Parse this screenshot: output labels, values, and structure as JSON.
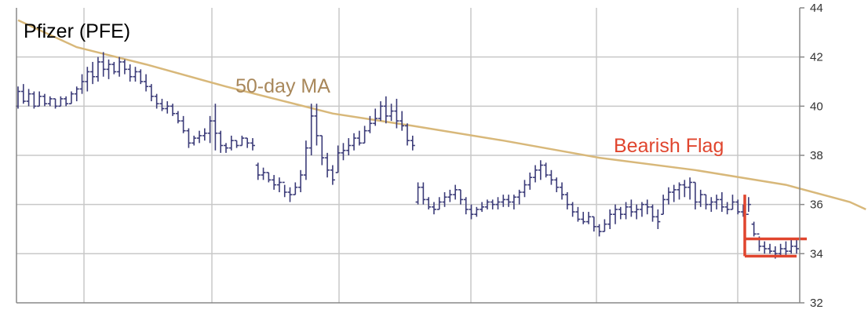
{
  "chart_data": {
    "type": "ohlc",
    "title": "Pfizer (PFE)",
    "xlabel": "",
    "ylabel": "",
    "ylim": [
      32,
      44
    ],
    "y_ticks": [
      32,
      34,
      36,
      38,
      40,
      42,
      44
    ],
    "grid": true,
    "annotations": {
      "ma_label": "50-day MA",
      "pattern_label": "Bearish Flag"
    },
    "colors": {
      "bars": "#3b3b78",
      "moving_average": "#d8b87a",
      "ma_label": "#a8875a",
      "pattern": "#e0452e",
      "grid": "#c8c8c8",
      "axis": "#888888"
    },
    "moving_average": {
      "name": "50-day MA",
      "points": [
        [
          1,
          43.5
        ],
        [
          12,
          42.4
        ],
        [
          25,
          41.7
        ],
        [
          40,
          40.8
        ],
        [
          60,
          39.7
        ],
        [
          75,
          39.2
        ],
        [
          92,
          38.6
        ],
        [
          110,
          37.9
        ],
        [
          128,
          37.4
        ],
        [
          145,
          36.8
        ],
        [
          157,
          36.1
        ],
        [
          160,
          35.8
        ]
      ]
    },
    "ohlc": [
      [
        39.9,
        40.8,
        40.0,
        40.6
      ],
      [
        40.1,
        40.9,
        40.6,
        40.2
      ],
      [
        40.0,
        40.7,
        40.2,
        40.5
      ],
      [
        39.9,
        40.6,
        40.5,
        40.0
      ],
      [
        40.0,
        40.6,
        40.0,
        40.4
      ],
      [
        40.0,
        40.5,
        40.4,
        40.1
      ],
      [
        40.0,
        40.4,
        40.1,
        40.3
      ],
      [
        39.9,
        40.3,
        40.3,
        40.0
      ],
      [
        40.0,
        40.4,
        40.0,
        40.3
      ],
      [
        40.0,
        40.4,
        40.3,
        40.1
      ],
      [
        40.1,
        40.6,
        40.1,
        40.5
      ],
      [
        40.2,
        40.8,
        40.5,
        40.7
      ],
      [
        40.5,
        41.3,
        40.7,
        41.0
      ],
      [
        40.6,
        41.6,
        41.0,
        41.4
      ],
      [
        40.9,
        41.8,
        41.4,
        41.2
      ],
      [
        41.0,
        42.0,
        41.2,
        41.8
      ],
      [
        41.2,
        42.2,
        41.8,
        41.5
      ],
      [
        41.1,
        41.9,
        41.5,
        41.7
      ],
      [
        41.3,
        41.8,
        41.7,
        41.4
      ],
      [
        41.2,
        42.0,
        41.4,
        41.8
      ],
      [
        41.3,
        41.9,
        41.8,
        41.5
      ],
      [
        41.0,
        41.7,
        41.5,
        41.2
      ],
      [
        41.0,
        41.6,
        41.2,
        41.4
      ],
      [
        40.9,
        41.5,
        41.4,
        41.0
      ],
      [
        40.6,
        41.3,
        41.0,
        40.8
      ],
      [
        40.2,
        40.9,
        40.8,
        40.4
      ],
      [
        39.9,
        40.5,
        40.4,
        40.1
      ],
      [
        39.8,
        40.3,
        40.1,
        39.9
      ],
      [
        39.7,
        40.2,
        39.9,
        40.0
      ],
      [
        39.6,
        40.1,
        40.0,
        39.7
      ],
      [
        39.3,
        39.8,
        39.7,
        39.4
      ],
      [
        38.9,
        39.6,
        39.4,
        39.0
      ],
      [
        38.3,
        39.1,
        39.0,
        38.5
      ],
      [
        38.4,
        38.8,
        38.5,
        38.7
      ],
      [
        38.5,
        39.0,
        38.7,
        38.8
      ],
      [
        38.6,
        39.1,
        38.8,
        38.9
      ],
      [
        38.5,
        39.6,
        38.9,
        39.4
      ],
      [
        38.2,
        40.1,
        39.4,
        38.9
      ],
      [
        38.1,
        39.0,
        38.9,
        38.4
      ],
      [
        38.1,
        38.5,
        38.4,
        38.3
      ],
      [
        38.2,
        38.8,
        38.3,
        38.6
      ],
      [
        38.3,
        38.6,
        38.6,
        38.4
      ],
      [
        38.4,
        38.8,
        38.4,
        38.7
      ],
      [
        38.3,
        38.7,
        38.7,
        38.5
      ],
      [
        38.2,
        38.7,
        38.5,
        38.4
      ],
      [
        37.0,
        37.7,
        37.6,
        37.2
      ],
      [
        37.0,
        37.5,
        37.2,
        37.3
      ],
      [
        36.9,
        37.3,
        37.3,
        37.0
      ],
      [
        36.6,
        37.2,
        37.0,
        36.8
      ],
      [
        36.5,
        37.1,
        36.8,
        36.9
      ],
      [
        36.3,
        36.8,
        36.9,
        36.5
      ],
      [
        36.1,
        36.7,
        36.5,
        36.4
      ],
      [
        36.4,
        36.9,
        36.4,
        36.7
      ],
      [
        36.5,
        37.4,
        36.7,
        37.2
      ],
      [
        37.0,
        38.6,
        37.2,
        38.3
      ],
      [
        38.0,
        40.1,
        38.3,
        39.6
      ],
      [
        38.4,
        40.1,
        39.6,
        38.8
      ],
      [
        37.6,
        38.8,
        38.8,
        37.9
      ],
      [
        37.1,
        38.1,
        37.9,
        37.4
      ],
      [
        36.8,
        37.6,
        37.4,
        37.0
      ],
      [
        37.3,
        38.4,
        37.3,
        38.1
      ],
      [
        37.8,
        38.5,
        38.1,
        38.2
      ],
      [
        38.0,
        38.7,
        38.2,
        38.4
      ],
      [
        38.2,
        38.9,
        38.4,
        38.7
      ],
      [
        38.4,
        39.0,
        38.7,
        38.5
      ],
      [
        38.5,
        39.2,
        38.5,
        39.0
      ],
      [
        38.9,
        39.6,
        39.0,
        39.3
      ],
      [
        39.2,
        39.9,
        39.3,
        39.5
      ],
      [
        39.4,
        40.2,
        39.5,
        40.0
      ],
      [
        39.3,
        40.4,
        40.0,
        39.6
      ],
      [
        39.4,
        40.1,
        39.6,
        39.8
      ],
      [
        39.1,
        40.3,
        39.8,
        39.4
      ],
      [
        39.0,
        39.8,
        39.4,
        39.2
      ],
      [
        38.4,
        39.3,
        39.2,
        38.6
      ],
      [
        38.2,
        38.8,
        38.6,
        38.4
      ],
      [
        36.0,
        36.9,
        36.1,
        36.7
      ],
      [
        36.0,
        36.9,
        36.7,
        36.2
      ],
      [
        35.8,
        36.3,
        36.2,
        35.9
      ],
      [
        35.6,
        36.1,
        35.9,
        35.8
      ],
      [
        35.8,
        36.3,
        35.8,
        36.1
      ],
      [
        35.9,
        36.5,
        36.1,
        36.3
      ],
      [
        36.1,
        36.6,
        36.3,
        36.4
      ],
      [
        36.2,
        36.8,
        36.4,
        36.6
      ],
      [
        36.0,
        36.6,
        36.6,
        36.2
      ],
      [
        35.6,
        36.3,
        36.2,
        35.8
      ],
      [
        35.4,
        36.0,
        35.8,
        35.6
      ],
      [
        35.5,
        35.9,
        35.6,
        35.8
      ],
      [
        35.7,
        36.1,
        35.8,
        35.9
      ],
      [
        35.8,
        36.2,
        35.9,
        36.1
      ],
      [
        35.8,
        36.2,
        36.1,
        36.0
      ],
      [
        35.8,
        36.3,
        36.0,
        36.1
      ],
      [
        35.9,
        36.4,
        36.1,
        36.2
      ],
      [
        35.9,
        36.4,
        36.2,
        36.1
      ],
      [
        35.8,
        36.4,
        36.1,
        36.3
      ],
      [
        36.0,
        36.6,
        36.3,
        36.5
      ],
      [
        36.3,
        37.0,
        36.5,
        36.8
      ],
      [
        36.6,
        37.3,
        36.8,
        37.1
      ],
      [
        36.9,
        37.6,
        37.1,
        37.4
      ],
      [
        37.0,
        37.8,
        37.4,
        37.6
      ],
      [
        37.1,
        37.7,
        37.6,
        37.2
      ],
      [
        36.8,
        37.4,
        37.2,
        37.0
      ],
      [
        36.5,
        37.1,
        37.0,
        36.7
      ],
      [
        36.2,
        36.9,
        36.7,
        36.4
      ],
      [
        35.8,
        36.5,
        36.4,
        36.0
      ],
      [
        35.5,
        36.1,
        36.0,
        35.7
      ],
      [
        35.3,
        35.9,
        35.7,
        35.4
      ],
      [
        35.2,
        35.7,
        35.4,
        35.3
      ],
      [
        35.2,
        35.7,
        35.3,
        35.5
      ],
      [
        34.9,
        35.5,
        35.5,
        35.1
      ],
      [
        34.7,
        35.2,
        35.1,
        34.9
      ],
      [
        34.9,
        35.4,
        34.9,
        35.2
      ],
      [
        35.0,
        35.8,
        35.2,
        35.6
      ],
      [
        35.2,
        36.0,
        35.6,
        35.8
      ],
      [
        35.4,
        35.9,
        35.8,
        35.6
      ],
      [
        35.4,
        36.1,
        35.6,
        35.9
      ],
      [
        35.5,
        36.2,
        35.9,
        35.7
      ],
      [
        35.4,
        36.0,
        35.7,
        35.8
      ],
      [
        35.5,
        36.1,
        35.8,
        36.0
      ],
      [
        35.6,
        36.2,
        36.0,
        35.9
      ],
      [
        35.3,
        36.0,
        35.9,
        35.5
      ],
      [
        35.0,
        35.8,
        35.5,
        35.3
      ],
      [
        35.6,
        36.4,
        35.6,
        36.2
      ],
      [
        36.0,
        36.7,
        36.2,
        36.5
      ],
      [
        36.1,
        36.8,
        36.5,
        36.6
      ],
      [
        36.2,
        36.9,
        36.6,
        36.8
      ],
      [
        36.3,
        37.0,
        36.8,
        36.7
      ],
      [
        36.2,
        37.1,
        36.7,
        36.9
      ],
      [
        35.8,
        36.9,
        36.9,
        36.1
      ],
      [
        35.9,
        36.6,
        36.1,
        36.4
      ],
      [
        35.8,
        36.4,
        36.4,
        36.0
      ],
      [
        35.7,
        36.3,
        36.0,
        36.1
      ],
      [
        35.8,
        36.4,
        36.1,
        36.2
      ],
      [
        35.7,
        36.5,
        36.2,
        35.9
      ],
      [
        35.6,
        36.1,
        35.9,
        35.8
      ],
      [
        35.8,
        36.4,
        35.8,
        36.1
      ],
      [
        35.6,
        36.2,
        36.1,
        35.7
      ],
      [
        35.5,
        36.0,
        35.7,
        35.6
      ],
      [
        35.7,
        36.3,
        35.6,
        36.0
      ],
      [
        34.7,
        35.3,
        35.2,
        34.8
      ],
      [
        34.1,
        34.7,
        34.8,
        34.3
      ],
      [
        34.0,
        34.5,
        34.3,
        34.2
      ],
      [
        34.0,
        34.4,
        34.2,
        34.1
      ],
      [
        33.8,
        34.3,
        34.1,
        34.0
      ],
      [
        33.9,
        34.4,
        34.0,
        34.2
      ],
      [
        33.9,
        34.5,
        34.2,
        34.1
      ],
      [
        34.0,
        34.6,
        34.1,
        34.3
      ],
      [
        34.0,
        34.6,
        34.3,
        34.2
      ]
    ]
  }
}
